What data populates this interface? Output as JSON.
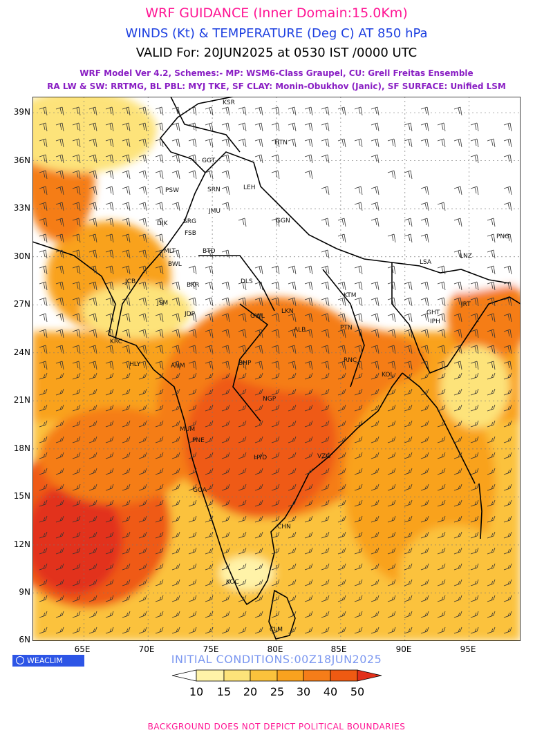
{
  "header": {
    "title": "WRF GUIDANCE (Inner Domain:15.0Km)",
    "subtitle": "WINDS (Kt) & TEMPERATURE (Deg C) AT 850 hPa",
    "valid": "VALID For: 20JUN2025 at 0530 IST /0000 UTC",
    "scheme_line1": "WRF Model Ver 4.2, Schemes:- MP: WSM6-Class Graupel, CU: Grell Freitas Ensemble",
    "scheme_line2": "RA LW & SW: RRTMG, BL PBL: MYJ TKE, SF CLAY: Monin-Obukhov (Janic), SF SURFACE: Unified LSM"
  },
  "axes": {
    "lat_ticks": [
      "39N",
      "36N",
      "33N",
      "30N",
      "27N",
      "24N",
      "21N",
      "18N",
      "15N",
      "12N",
      "9N",
      "6N"
    ],
    "lon_ticks": [
      "65E",
      "70E",
      "75E",
      "80E",
      "85E",
      "90E",
      "95E"
    ],
    "lat_range": [
      6,
      40
    ],
    "lon_range": [
      61,
      99
    ]
  },
  "stations": [
    "KSR",
    "HTN",
    "GGT",
    "PSW",
    "SRN",
    "LEH",
    "JMU",
    "GGN",
    "DIK",
    "SRG",
    "FSB",
    "PNG",
    "MLT",
    "BTD",
    "LSA",
    "LNZ",
    "BWL",
    "DLS",
    "JCB",
    "BKR",
    "KTM",
    "JSM",
    "LKN",
    "GHT",
    "JRT",
    "JDP",
    "GWL",
    "IPH",
    "PTN",
    "ALB",
    "KRC",
    "RNC",
    "HLY",
    "AHM",
    "BHP",
    "KOL",
    "NGP",
    "MUM",
    "PNE",
    "VZG",
    "HYD",
    "GOA",
    "CHN",
    "KOC",
    "CLM"
  ],
  "brand": "WEACLIM",
  "init_conditions": "INITIAL CONDITIONS:00Z18JUN2025",
  "legend": {
    "levels": [
      "10",
      "15",
      "20",
      "25",
      "30",
      "40",
      "50"
    ],
    "colors": [
      "#ffffff",
      "#fff3a8",
      "#fde37a",
      "#fbc23c",
      "#f9a21f",
      "#f57d19",
      "#ef5a12",
      "#e2301a"
    ]
  },
  "footer": "BACKGROUND DOES NOT DEPICT POLITICAL BOUNDARIES",
  "colors": {
    "title": "#ff1493",
    "subtitle": "#1c3fe0",
    "scheme": "#8a1fc4",
    "barb_label": "#3344dd"
  }
}
